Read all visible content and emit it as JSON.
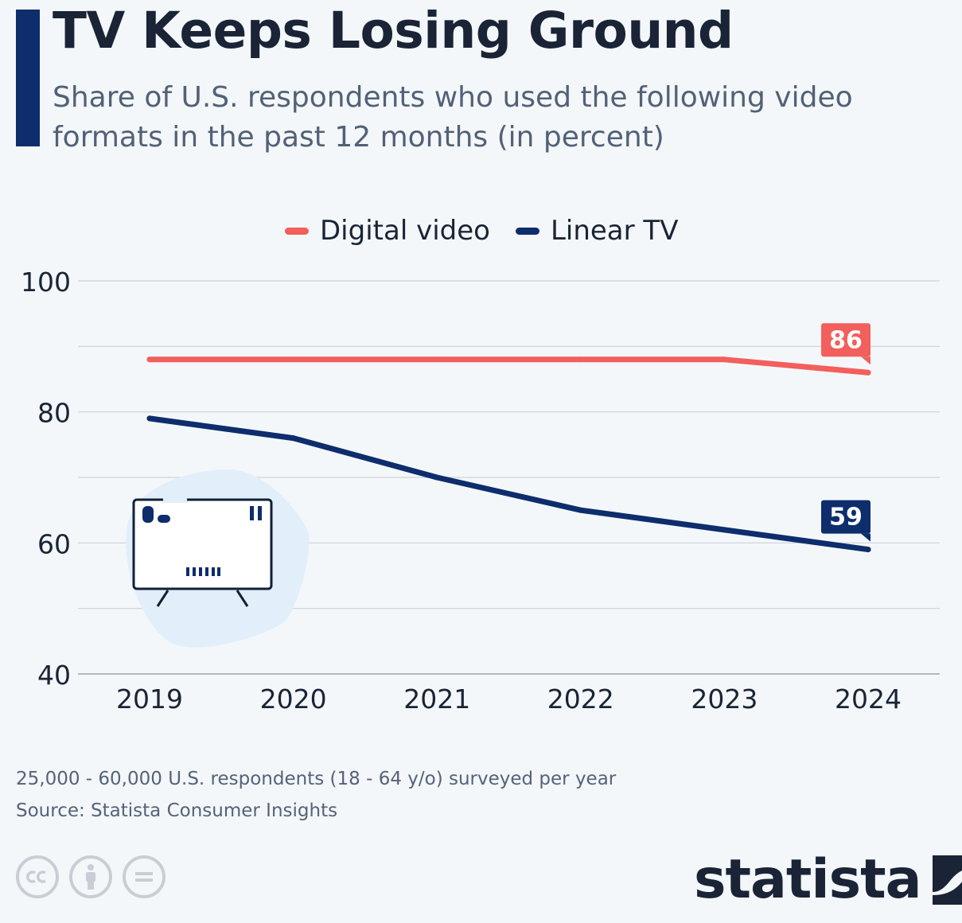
{
  "header": {
    "title": "TV Keeps Losing Ground",
    "subtitle": "Share of U.S. respondents who used the following video formats in the past 12 months (in percent)"
  },
  "chart_data": {
    "type": "line",
    "x": [
      "2019",
      "2020",
      "2021",
      "2022",
      "2023",
      "2024"
    ],
    "series": [
      {
        "name": "Digital video",
        "values": [
          88,
          88,
          88,
          88,
          88,
          86
        ],
        "color": "#f25f5c",
        "end_label": "86"
      },
      {
        "name": "Linear TV",
        "values": [
          79,
          76,
          70,
          65,
          62,
          59
        ],
        "color": "#0d2d6c",
        "end_label": "59"
      }
    ],
    "ylim": [
      40,
      100
    ],
    "y_ticks": [
      40,
      60,
      80,
      100
    ],
    "y_tick_labels": [
      "40",
      "60",
      "80",
      "100"
    ],
    "gridlines": [
      40,
      50,
      60,
      70,
      80,
      90,
      100
    ],
    "legend_position": "top-center",
    "grid": true,
    "xlabel": "",
    "ylabel": ""
  },
  "illustration": {
    "icon": "tv-icon"
  },
  "footer": {
    "note": "25,000 - 60,000 U.S. respondents (18 - 64 y/o) surveyed per year",
    "source": "Source: Statista Consumer Insights",
    "license_icons": [
      "cc-icon",
      "attribution-icon",
      "no-derivatives-icon"
    ],
    "logo": "statista"
  }
}
